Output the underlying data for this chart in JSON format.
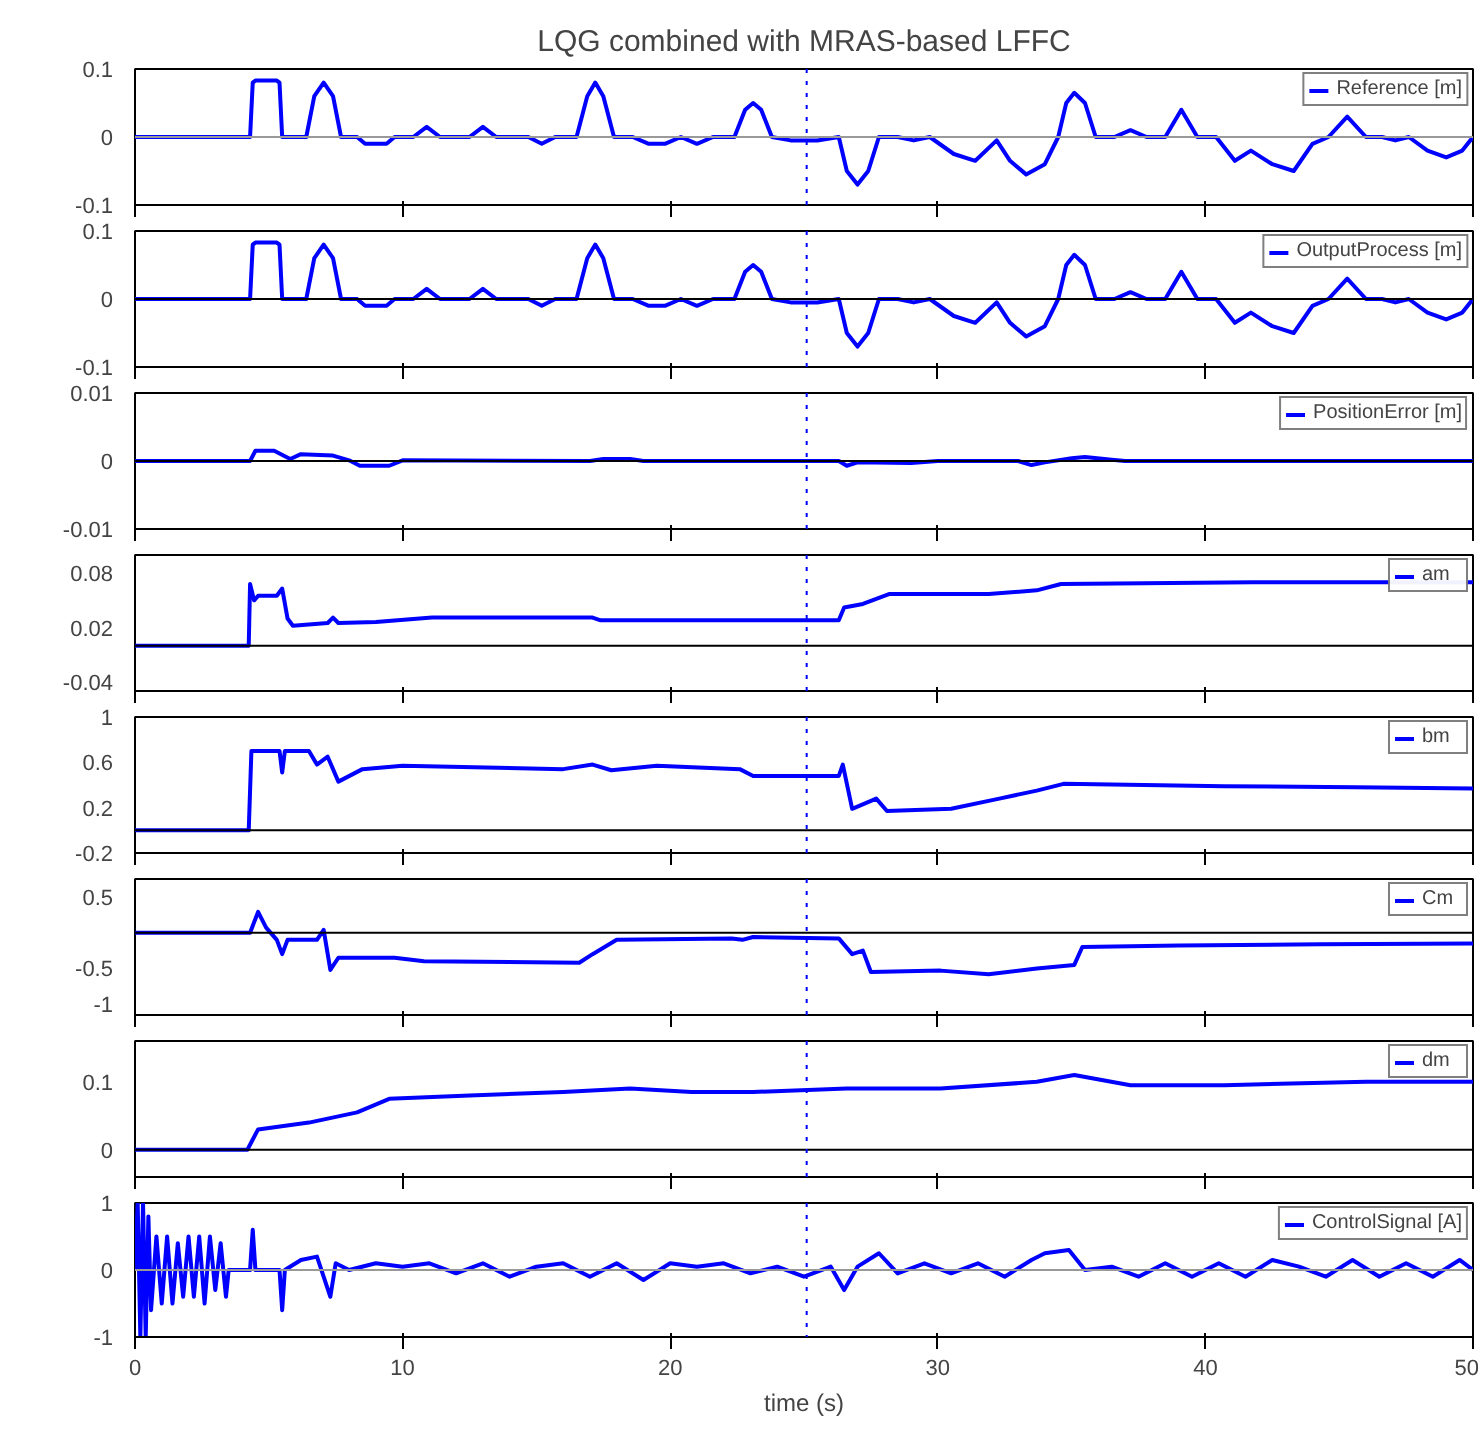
{
  "chart_data": [
    {
      "type": "line",
      "title": "LQG combined with MRAS-based LFFC",
      "xlim": [
        0,
        50
      ],
      "xticks": [
        0,
        10,
        20,
        30,
        40,
        50
      ],
      "ylim": [
        -0.1,
        0.1
      ],
      "yticks": [
        -0.1,
        0,
        0.1
      ],
      "tick_labels": "y",
      "legend": "top right",
      "ref_lines": [
        {
          "axis": "y",
          "value": 0,
          "color": "#999999",
          "line_style": "solid"
        },
        {
          "axis": "x",
          "value": 25.1,
          "color": "#0000ff",
          "line_style": "dotted"
        }
      ],
      "series": [
        {
          "name": "Reference [m]",
          "color": "#0000ff",
          "x": [
            0,
            4.3,
            4.4,
            4.5,
            5.3,
            5.4,
            5.5,
            6.4,
            6.7,
            7.05,
            7.4,
            7.7,
            8.3,
            8.6,
            9.4,
            9.7,
            10.4,
            10.9,
            11.4,
            12.5,
            13.0,
            13.5,
            14.7,
            15.2,
            15.7,
            16.5,
            16.9,
            17.2,
            17.5,
            17.9,
            18.6,
            19.2,
            19.8,
            20.4,
            21.0,
            21.6,
            22.4,
            22.8,
            23.1,
            23.4,
            23.8,
            24.5,
            25.5,
            26.3,
            26.6,
            27.0,
            27.4,
            27.8,
            28.5,
            29.1,
            29.7,
            30.6,
            31.4,
            32.2,
            32.7,
            33.3,
            34.0,
            34.5,
            34.8,
            35.1,
            35.5,
            35.9,
            36.6,
            37.2,
            37.8,
            38.5,
            39.1,
            39.7,
            40.4,
            41.1,
            41.7,
            42.5,
            43.3,
            44.0,
            44.6,
            45.3,
            46.0,
            46.6,
            47.1,
            47.6,
            48.3,
            49.0,
            49.6,
            50
          ],
          "values": [
            0,
            0,
            0.08,
            0.083,
            0.083,
            0.08,
            0,
            0,
            0.06,
            0.08,
            0.06,
            0,
            0,
            -0.01,
            -0.01,
            0,
            0,
            0.015,
            0,
            0,
            0.015,
            0,
            0,
            -0.01,
            0,
            0,
            0.06,
            0.08,
            0.06,
            0,
            0,
            -0.01,
            -0.01,
            0,
            -0.01,
            0,
            0,
            0.04,
            0.05,
            0.04,
            0,
            -0.005,
            -0.005,
            0,
            -0.05,
            -0.07,
            -0.05,
            0,
            0,
            -0.005,
            0,
            -0.025,
            -0.035,
            -0.005,
            -0.035,
            -0.055,
            -0.04,
            0,
            0.05,
            0.065,
            0.05,
            0,
            0,
            0.01,
            0,
            0,
            0.04,
            0,
            0,
            -0.035,
            -0.02,
            -0.04,
            -0.05,
            -0.01,
            0,
            0.03,
            0,
            0,
            -0.005,
            0,
            -0.02,
            -0.03,
            -0.02,
            0
          ]
        }
      ]
    },
    {
      "type": "line",
      "xlim": [
        0,
        50
      ],
      "xticks": [
        0,
        10,
        20,
        30,
        40,
        50
      ],
      "ylim": [
        -0.1,
        0.1
      ],
      "yticks": [
        -0.1,
        0,
        0.1
      ],
      "tick_labels": "y",
      "legend": "top right",
      "ref_lines": [
        {
          "axis": "y",
          "value": 0,
          "color": "#000000",
          "line_style": "solid"
        },
        {
          "axis": "x",
          "value": 25.1,
          "color": "#0000ff",
          "line_style": "dotted"
        }
      ],
      "series": [
        {
          "name": "OutputProcess [m]",
          "color": "#0000ff",
          "x": [
            0,
            4.3,
            4.4,
            4.5,
            5.3,
            5.4,
            5.5,
            6.4,
            6.7,
            7.05,
            7.4,
            7.7,
            8.3,
            8.6,
            9.4,
            9.7,
            10.4,
            10.9,
            11.4,
            12.5,
            13.0,
            13.5,
            14.7,
            15.2,
            15.7,
            16.5,
            16.9,
            17.2,
            17.5,
            17.9,
            18.6,
            19.2,
            19.8,
            20.4,
            21.0,
            21.6,
            22.4,
            22.8,
            23.1,
            23.4,
            23.8,
            24.5,
            25.5,
            26.3,
            26.6,
            27.0,
            27.4,
            27.8,
            28.5,
            29.1,
            29.7,
            30.6,
            31.4,
            32.2,
            32.7,
            33.3,
            34.0,
            34.5,
            34.8,
            35.1,
            35.5,
            35.9,
            36.6,
            37.2,
            37.8,
            38.5,
            39.1,
            39.7,
            40.4,
            41.1,
            41.7,
            42.5,
            43.3,
            44.0,
            44.6,
            45.3,
            46.0,
            46.6,
            47.1,
            47.6,
            48.3,
            49.0,
            49.6,
            50
          ],
          "values": [
            0,
            0,
            0.08,
            0.083,
            0.083,
            0.08,
            0,
            0,
            0.06,
            0.08,
            0.06,
            0,
            0,
            -0.01,
            -0.01,
            0,
            0,
            0.015,
            0,
            0,
            0.015,
            0,
            0,
            -0.01,
            0,
            0,
            0.06,
            0.08,
            0.06,
            0,
            0,
            -0.01,
            -0.01,
            0,
            -0.01,
            0,
            0,
            0.04,
            0.05,
            0.04,
            0,
            -0.005,
            -0.005,
            0,
            -0.05,
            -0.07,
            -0.05,
            0,
            0,
            -0.005,
            0,
            -0.025,
            -0.035,
            -0.005,
            -0.035,
            -0.055,
            -0.04,
            0,
            0.05,
            0.065,
            0.05,
            0,
            0,
            0.01,
            0,
            0,
            0.04,
            0,
            0,
            -0.035,
            -0.02,
            -0.04,
            -0.05,
            -0.01,
            0,
            0.03,
            0,
            0,
            -0.005,
            0,
            -0.02,
            -0.03,
            -0.02,
            0
          ]
        }
      ]
    },
    {
      "type": "line",
      "xlim": [
        0,
        50
      ],
      "xticks": [
        0,
        10,
        20,
        30,
        40,
        50
      ],
      "ylim": [
        -0.01,
        0.01
      ],
      "yticks": [
        -0.01,
        0,
        0.01
      ],
      "tick_labels": "y",
      "legend": "top right",
      "ref_lines": [
        {
          "axis": "y",
          "value": 0,
          "color": "#000000",
          "line_style": "solid"
        },
        {
          "axis": "x",
          "value": 25.1,
          "color": "#0000ff",
          "line_style": "dotted"
        }
      ],
      "series": [
        {
          "name": "PositionError [m]",
          "color": "#0000ff",
          "x": [
            0,
            4.3,
            4.5,
            5.2,
            5.8,
            6.2,
            7.4,
            8.0,
            8.4,
            9.5,
            10.0,
            17,
            17.5,
            18.5,
            19,
            26.3,
            26.6,
            27,
            29,
            30,
            33,
            33.5,
            34,
            35,
            35.5,
            36.5,
            37,
            50
          ],
          "values": [
            0,
            0,
            0.0015,
            0.0015,
            0.0003,
            0.001,
            0.0008,
            0.0001,
            -0.0007,
            -0.0007,
            0.0001,
            0,
            0.0003,
            0.0003,
            0,
            0,
            -0.0007,
            -0.0002,
            -0.0003,
            0,
            0,
            -0.0006,
            -0.0002,
            0.0004,
            0.0006,
            0.0002,
            0,
            0
          ]
        }
      ]
    },
    {
      "type": "line",
      "xlim": [
        0,
        50
      ],
      "xticks": [
        0,
        10,
        20,
        30,
        40,
        50
      ],
      "ylim": [
        -0.05,
        0.1
      ],
      "yticks": [
        -0.04,
        0.02,
        0.08
      ],
      "tick_labels": "y",
      "legend": "top right",
      "ref_lines": [
        {
          "axis": "y",
          "value": 0,
          "color": "#000000",
          "line_style": "solid"
        },
        {
          "axis": "x",
          "value": 25.1,
          "color": "#0000ff",
          "line_style": "dotted"
        }
      ],
      "series": [
        {
          "name": "am",
          "color": "#0000ff",
          "x": [
            0,
            4.25,
            4.3,
            4.45,
            4.6,
            5.3,
            5.5,
            5.7,
            5.9,
            7.2,
            7.4,
            7.6,
            9,
            11.1,
            17.1,
            17.4,
            26.3,
            26.5,
            27.2,
            28.2,
            31.9,
            33.7,
            34.6,
            41.8,
            50
          ],
          "values": [
            0,
            0,
            0.068,
            0.05,
            0.055,
            0.055,
            0.063,
            0.03,
            0.022,
            0.025,
            0.031,
            0.025,
            0.026,
            0.031,
            0.031,
            0.028,
            0.028,
            0.042,
            0.046,
            0.057,
            0.057,
            0.061,
            0.068,
            0.07,
            0.07
          ]
        }
      ]
    },
    {
      "type": "line",
      "xlim": [
        0,
        50
      ],
      "xticks": [
        0,
        10,
        20,
        30,
        40,
        50
      ],
      "ylim": [
        -0.2,
        1
      ],
      "yticks": [
        -0.2,
        0.2,
        0.6,
        1
      ],
      "tick_labels": "y",
      "legend": "top right",
      "ref_lines": [
        {
          "axis": "y",
          "value": 0,
          "color": "#000000",
          "line_style": "solid"
        },
        {
          "axis": "x",
          "value": 25.1,
          "color": "#0000ff",
          "line_style": "dotted"
        }
      ],
      "series": [
        {
          "name": "bm",
          "color": "#0000ff",
          "x": [
            0,
            4.25,
            4.35,
            5.4,
            5.5,
            5.6,
            6.5,
            6.8,
            7.2,
            7.6,
            8.5,
            10,
            16,
            17.1,
            17.8,
            19.5,
            22.6,
            23.1,
            26.3,
            26.45,
            26.8,
            27.7,
            28.1,
            30.5,
            32.3,
            33.7,
            34.7,
            40.7,
            45.6,
            50
          ],
          "values": [
            0,
            0,
            0.7,
            0.7,
            0.51,
            0.7,
            0.7,
            0.58,
            0.65,
            0.43,
            0.54,
            0.57,
            0.54,
            0.58,
            0.53,
            0.57,
            0.54,
            0.48,
            0.48,
            0.58,
            0.19,
            0.28,
            0.17,
            0.19,
            0.28,
            0.35,
            0.41,
            0.39,
            0.38,
            0.37
          ]
        }
      ]
    },
    {
      "type": "line",
      "xlim": [
        0,
        50
      ],
      "xticks": [
        0,
        10,
        20,
        30,
        40,
        50
      ],
      "ylim": [
        -1.15,
        0.75
      ],
      "yticks": [
        -1,
        -0.5,
        0.5
      ],
      "tick_labels": "y",
      "legend": "top right",
      "ref_lines": [
        {
          "axis": "y",
          "value": 0,
          "color": "#000000",
          "line_style": "solid"
        },
        {
          "axis": "x",
          "value": 25.1,
          "color": "#0000ff",
          "line_style": "dotted"
        }
      ],
      "series": [
        {
          "name": "Cm",
          "color": "#0000ff",
          "x": [
            0,
            4.3,
            4.6,
            4.9,
            5.3,
            5.5,
            5.7,
            6.8,
            7.05,
            7.3,
            7.6,
            9.7,
            10.8,
            16.6,
            17.1,
            18,
            22.3,
            22.7,
            23.1,
            26.3,
            26.8,
            27.2,
            27.5,
            30.1,
            31.9,
            33.7,
            35.1,
            35.4,
            39,
            44.3,
            50
          ],
          "values": [
            0,
            0,
            0.29,
            0.07,
            -0.1,
            -0.3,
            -0.1,
            -0.1,
            0.04,
            -0.52,
            -0.35,
            -0.35,
            -0.4,
            -0.42,
            -0.3,
            -0.1,
            -0.08,
            -0.1,
            -0.06,
            -0.08,
            -0.3,
            -0.25,
            -0.55,
            -0.53,
            -0.58,
            -0.5,
            -0.45,
            -0.2,
            -0.18,
            -0.16,
            -0.15
          ]
        }
      ]
    },
    {
      "type": "line",
      "xlim": [
        0,
        50
      ],
      "xticks": [
        0,
        10,
        20,
        30,
        40,
        50
      ],
      "ylim": [
        -0.04,
        0.16
      ],
      "yticks": [
        0,
        0.1
      ],
      "tick_labels": "y",
      "legend": "top right",
      "ref_lines": [
        {
          "axis": "y",
          "value": 0,
          "color": "#000000",
          "line_style": "solid"
        },
        {
          "axis": "x",
          "value": 25.1,
          "color": "#0000ff",
          "line_style": "dotted"
        }
      ],
      "series": [
        {
          "name": "dm",
          "color": "#0000ff",
          "x": [
            0,
            4.2,
            4.6,
            6.5,
            8.3,
            9.5,
            12.5,
            16,
            18.5,
            20.8,
            23.1,
            26.6,
            30.1,
            33.7,
            35.1,
            37.2,
            40.7,
            46,
            50
          ],
          "values": [
            0,
            0,
            0.03,
            0.04,
            0.055,
            0.075,
            0.08,
            0.085,
            0.09,
            0.085,
            0.085,
            0.09,
            0.09,
            0.1,
            0.11,
            0.095,
            0.095,
            0.1,
            0.1
          ]
        }
      ]
    },
    {
      "type": "line",
      "xlabel": "time (s)",
      "xlim": [
        0,
        50
      ],
      "xticks": [
        0,
        10,
        20,
        30,
        40,
        50
      ],
      "ylim": [
        -1,
        1
      ],
      "yticks": [
        -1,
        0,
        1
      ],
      "legend": "top right",
      "ref_lines": [
        {
          "axis": "y",
          "value": 0,
          "color": "#999999",
          "line_style": "solid"
        },
        {
          "axis": "x",
          "value": 25.1,
          "color": "#0000ff",
          "line_style": "dotted"
        }
      ],
      "series": [
        {
          "name": "ControlSignal [A]",
          "color": "#0000ff",
          "x": [
            0,
            0.1,
            0.2,
            0.3,
            0.4,
            0.5,
            0.6,
            0.8,
            1.0,
            1.2,
            1.4,
            1.6,
            1.8,
            2.0,
            2.2,
            2.4,
            2.6,
            2.8,
            3.0,
            3.2,
            3.4,
            3.5,
            4.3,
            4.4,
            4.5,
            5.4,
            5.5,
            5.6,
            6.2,
            6.8,
            7.3,
            7.5,
            8.0,
            9,
            10,
            11,
            12,
            13,
            14,
            15,
            16,
            17,
            18,
            19,
            20,
            21,
            22,
            23,
            24,
            25,
            26,
            26.5,
            27,
            27.8,
            28.5,
            29.5,
            30.5,
            31.5,
            32.5,
            33.5,
            34,
            34.9,
            35.5,
            36.5,
            37.5,
            38.5,
            39.5,
            40.5,
            41.5,
            42.5,
            43.5,
            44.5,
            45.5,
            46.5,
            47.5,
            48.5,
            49.5,
            50
          ],
          "values": [
            0,
            1,
            -1,
            1,
            -1,
            0.8,
            -0.6,
            0.5,
            -0.5,
            0.5,
            -0.5,
            0.4,
            -0.4,
            0.5,
            -0.4,
            0.5,
            -0.5,
            0.5,
            -0.3,
            0.4,
            -0.4,
            0,
            0,
            0.6,
            0,
            0,
            -0.6,
            0,
            0.15,
            0.2,
            -0.4,
            0.1,
            0,
            0.1,
            0.05,
            0.1,
            -0.05,
            0.1,
            -0.1,
            0.05,
            0.1,
            -0.1,
            0.1,
            -0.15,
            0.1,
            0.05,
            0.1,
            -0.05,
            0.05,
            -0.1,
            0.05,
            -0.3,
            0.05,
            0.25,
            -0.05,
            0.1,
            -0.05,
            0.1,
            -0.1,
            0.15,
            0.25,
            0.3,
            0,
            0.05,
            -0.1,
            0.1,
            -0.1,
            0.1,
            -0.1,
            0.15,
            0.05,
            -0.1,
            0.15,
            -0.1,
            0.1,
            -0.1,
            0.15,
            0
          ]
        }
      ]
    }
  ]
}
